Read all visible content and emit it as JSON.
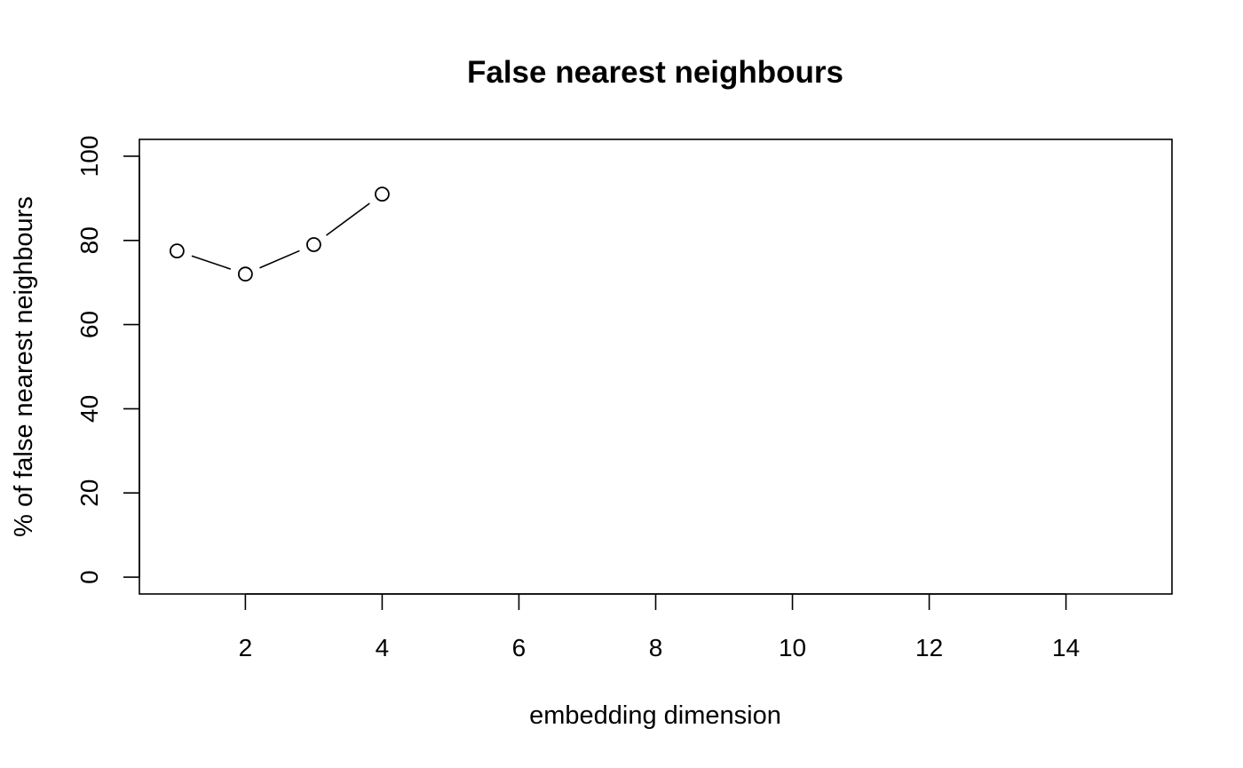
{
  "chart_data": {
    "type": "line",
    "title": "False nearest neighbours",
    "xlabel": "embedding dimension",
    "ylabel": "% of false nearest neighbours",
    "xlim": [
      0.45,
      15.55
    ],
    "ylim": [
      -4,
      104
    ],
    "x_ticks": [
      2,
      4,
      6,
      8,
      10,
      12,
      14
    ],
    "y_ticks": [
      0,
      20,
      40,
      60,
      80,
      100
    ],
    "grid": false,
    "series": [
      {
        "x": [
          1,
          2,
          3,
          4
        ],
        "values": [
          77.5,
          72,
          79,
          91
        ]
      }
    ],
    "point_style": "open-circle",
    "line_color": "#000000"
  }
}
